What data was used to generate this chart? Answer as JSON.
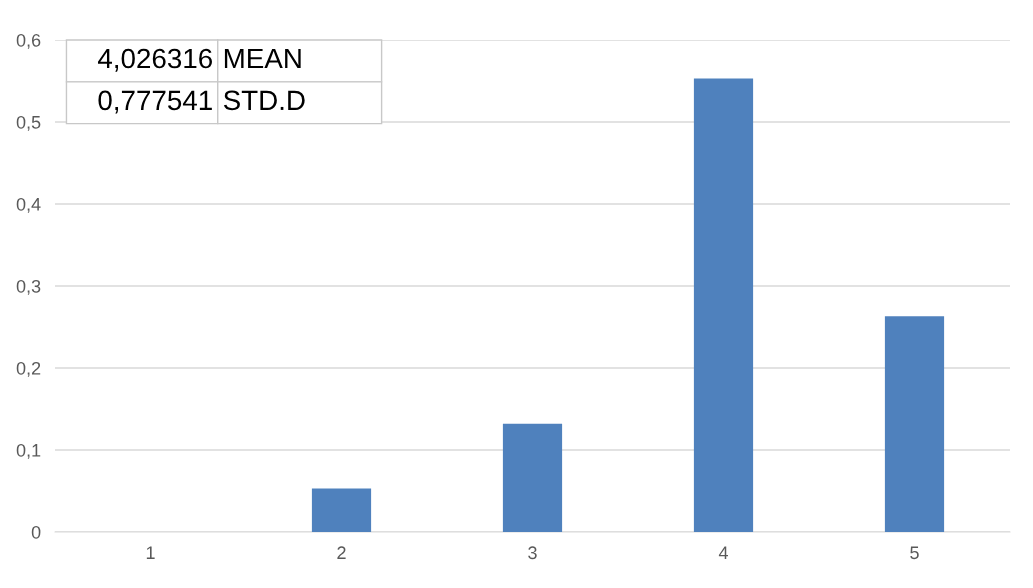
{
  "chart_data": {
    "type": "bar",
    "categories": [
      "1",
      "2",
      "3",
      "4",
      "5"
    ],
    "values": [
      0,
      0.053,
      0.132,
      0.553,
      0.263
    ],
    "color": "#4f81bd",
    "ylim": [
      0,
      0.6
    ],
    "yticks": [
      0,
      {
        "value": 0.1,
        "label": "0,1"
      },
      {
        "value": 0.2,
        "label": "0,2"
      },
      {
        "value": 0.3,
        "label": "0,3"
      },
      {
        "value": 0.4,
        "label": "0,4"
      },
      {
        "value": 0.5,
        "label": "0,5"
      },
      {
        "value": 0.6,
        "label": "0,6"
      }
    ],
    "grid": "y",
    "annotations": [
      "4,026316",
      "MEAN",
      "0,777541",
      "STD.D"
    ]
  }
}
